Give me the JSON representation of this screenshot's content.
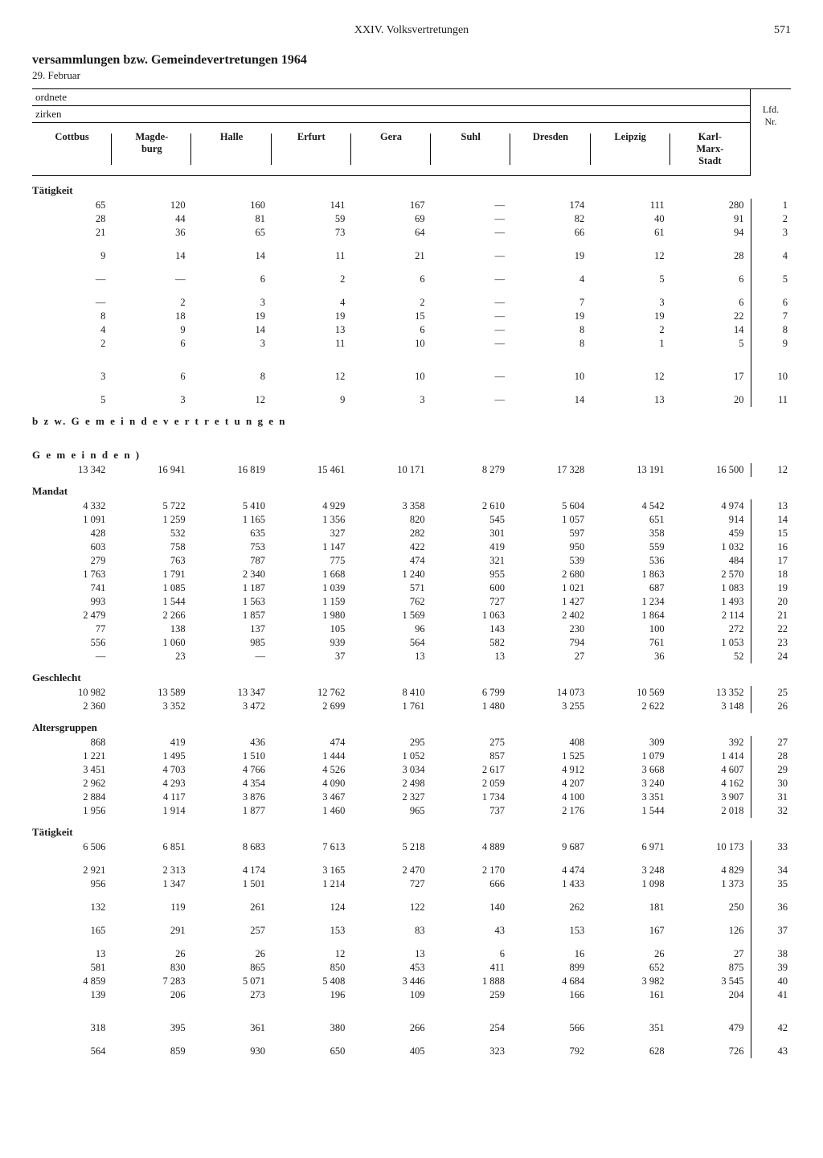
{
  "header": {
    "center": "XXIV. Volksvertretungen",
    "page": "571"
  },
  "title": "versammlungen bzw. Gemeindevertretungen 1964",
  "subdate": "29. Februar",
  "head": {
    "ordnete": "ordnete",
    "zirken": "zirken",
    "lfd": "Lfd.\nNr.",
    "cols": [
      "Cottbus",
      "Magde-\nburg",
      "Halle",
      "Erfurt",
      "Gera",
      "Suhl",
      "Dresden",
      "Leipzig",
      "Karl-\nMarx-\nStadt"
    ]
  },
  "sections": [
    {
      "label": "Tätigkeit",
      "rows": [
        [
          "65",
          "120",
          "160",
          "141",
          "167",
          "—",
          "174",
          "111",
          "280",
          "1"
        ],
        [
          "28",
          "44",
          "81",
          "59",
          "69",
          "—",
          "82",
          "40",
          "91",
          "2"
        ],
        [
          "21",
          "36",
          "65",
          "73",
          "64",
          "—",
          "66",
          "61",
          "94",
          "3"
        ],
        [
          "",
          "",
          "",
          "",
          "",
          "",
          "",
          "",
          "",
          ""
        ],
        [
          "9",
          "14",
          "14",
          "11",
          "21",
          "—",
          "19",
          "12",
          "28",
          "4"
        ],
        [
          "",
          "",
          "",
          "",
          "",
          "",
          "",
          "",
          "",
          ""
        ],
        [
          "—",
          "—",
          "6",
          "2",
          "6",
          "—",
          "4",
          "5",
          "6",
          "5"
        ],
        [
          "",
          "",
          "",
          "",
          "",
          "",
          "",
          "",
          "",
          ""
        ],
        [
          "—",
          "2",
          "3",
          "4",
          "2",
          "—",
          "7",
          "3",
          "6",
          "6"
        ],
        [
          "8",
          "18",
          "19",
          "19",
          "15",
          "—",
          "19",
          "19",
          "22",
          "7"
        ],
        [
          "4",
          "9",
          "14",
          "13",
          "6",
          "—",
          "8",
          "2",
          "14",
          "8"
        ],
        [
          "2",
          "6",
          "3",
          "11",
          "10",
          "—",
          "8",
          "1",
          "5",
          "9"
        ],
        [
          "",
          "",
          "",
          "",
          "",
          "",
          "",
          "",
          "",
          ""
        ],
        [
          "",
          "",
          "",
          "",
          "",
          "",
          "",
          "",
          "",
          ""
        ],
        [
          "3",
          "6",
          "8",
          "12",
          "10",
          "—",
          "10",
          "12",
          "17",
          "10"
        ],
        [
          "",
          "",
          "",
          "",
          "",
          "",
          "",
          "",
          "",
          ""
        ],
        [
          "5",
          "3",
          "12",
          "9",
          "3",
          "—",
          "14",
          "13",
          "20",
          "11"
        ]
      ],
      "ticks": true
    },
    {
      "label": "b z w.  G e m e i n d e v e r t r e t u n g e n",
      "spaced": true,
      "rows": []
    },
    {
      "label": "G e m e i n d e n )",
      "spaced": true,
      "rows": [
        [
          "13 342",
          "16 941",
          "16 819",
          "15 461",
          "10 171",
          "8 279",
          "17 328",
          "13 191",
          "16 500",
          "12"
        ]
      ],
      "ticks": true,
      "tallgap": true
    },
    {
      "label": "Mandat",
      "rows": [
        [
          "4 332",
          "5 722",
          "5 410",
          "4 929",
          "3 358",
          "2 610",
          "5 604",
          "4 542",
          "4 974",
          "13"
        ],
        [
          "1 091",
          "1 259",
          "1 165",
          "1 356",
          "820",
          "545",
          "1 057",
          "651",
          "914",
          "14"
        ],
        [
          "428",
          "532",
          "635",
          "327",
          "282",
          "301",
          "597",
          "358",
          "459",
          "15"
        ],
        [
          "603",
          "758",
          "753",
          "1 147",
          "422",
          "419",
          "950",
          "559",
          "1 032",
          "16"
        ],
        [
          "279",
          "763",
          "787",
          "775",
          "474",
          "321",
          "539",
          "536",
          "484",
          "17"
        ],
        [
          "1 763",
          "1 791",
          "2 340",
          "1 668",
          "1 240",
          "955",
          "2 680",
          "1 863",
          "2 570",
          "18"
        ],
        [
          "741",
          "1 085",
          "1 187",
          "1 039",
          "571",
          "600",
          "1 021",
          "687",
          "1 083",
          "19"
        ],
        [
          "993",
          "1 544",
          "1 563",
          "1 159",
          "762",
          "727",
          "1 427",
          "1 234",
          "1 493",
          "20"
        ],
        [
          "2 479",
          "2 266",
          "1 857",
          "1 980",
          "1 569",
          "1 063",
          "2 402",
          "1 864",
          "2 114",
          "21"
        ],
        [
          "77",
          "138",
          "137",
          "105",
          "96",
          "143",
          "230",
          "100",
          "272",
          "22"
        ],
        [
          "556",
          "1 060",
          "985",
          "939",
          "564",
          "582",
          "794",
          "761",
          "1 053",
          "23"
        ],
        [
          "—",
          "23",
          "—",
          "37",
          "13",
          "13",
          "27",
          "36",
          "52",
          "24"
        ]
      ],
      "ticks": true
    },
    {
      "label": "Geschlecht",
      "rows": [
        [
          "10 982",
          "13 589",
          "13 347",
          "12 762",
          "8 410",
          "6 799",
          "14 073",
          "10 569",
          "13 352",
          "25"
        ],
        [
          "2 360",
          "3 352",
          "3 472",
          "2 699",
          "1 761",
          "1 480",
          "3 255",
          "2 622",
          "3 148",
          "26"
        ]
      ],
      "ticks": true
    },
    {
      "label": "Altersgruppen",
      "rows": [
        [
          "868",
          "419",
          "436",
          "474",
          "295",
          "275",
          "408",
          "309",
          "392",
          "27"
        ],
        [
          "1 221",
          "1 495",
          "1 510",
          "1 444",
          "1 052",
          "857",
          "1 525",
          "1 079",
          "1 414",
          "28"
        ],
        [
          "3 451",
          "4 703",
          "4 766",
          "4 526",
          "3 034",
          "2 617",
          "4 912",
          "3 668",
          "4 607",
          "29"
        ],
        [
          "2 962",
          "4 293",
          "4 354",
          "4 090",
          "2 498",
          "2 059",
          "4 207",
          "3 240",
          "4 162",
          "30"
        ],
        [
          "2 884",
          "4 117",
          "3 876",
          "3 467",
          "2 327",
          "1 734",
          "4 100",
          "3 351",
          "3 907",
          "31"
        ],
        [
          "1 956",
          "1 914",
          "1 877",
          "1 460",
          "965",
          "737",
          "2 176",
          "1 544",
          "2 018",
          "32"
        ]
      ],
      "ticks": true
    },
    {
      "label": "Tätigkeit",
      "rows": [
        [
          "6 506",
          "6 851",
          "8 683",
          "7 613",
          "5 218",
          "4 889",
          "9 687",
          "6 971",
          "10 173",
          "33"
        ],
        [
          "",
          "",
          "",
          "",
          "",
          "",
          "",
          "",
          "",
          ""
        ],
        [
          "2 921",
          "2 313",
          "4 174",
          "3 165",
          "2 470",
          "2 170",
          "4 474",
          "3 248",
          "4 829",
          "34"
        ],
        [
          "956",
          "1 347",
          "1 501",
          "1 214",
          "727",
          "666",
          "1 433",
          "1 098",
          "1 373",
          "35"
        ],
        [
          "",
          "",
          "",
          "",
          "",
          "",
          "",
          "",
          "",
          ""
        ],
        [
          "132",
          "119",
          "261",
          "124",
          "122",
          "140",
          "262",
          "181",
          "250",
          "36"
        ],
        [
          "",
          "",
          "",
          "",
          "",
          "",
          "",
          "",
          "",
          ""
        ],
        [
          "165",
          "291",
          "257",
          "153",
          "83",
          "43",
          "153",
          "167",
          "126",
          "37"
        ],
        [
          "",
          "",
          "",
          "",
          "",
          "",
          "",
          "",
          "",
          ""
        ],
        [
          "13",
          "26",
          "26",
          "12",
          "13",
          "6",
          "16",
          "26",
          "27",
          "38"
        ],
        [
          "581",
          "830",
          "865",
          "850",
          "453",
          "411",
          "899",
          "652",
          "875",
          "39"
        ],
        [
          "4 859",
          "7 283",
          "5 071",
          "5 408",
          "3 446",
          "1 888",
          "4 684",
          "3 982",
          "3 545",
          "40"
        ],
        [
          "139",
          "206",
          "273",
          "196",
          "109",
          "259",
          "166",
          "161",
          "204",
          "41"
        ],
        [
          "",
          "",
          "",
          "",
          "",
          "",
          "",
          "",
          "",
          ""
        ],
        [
          "",
          "",
          "",
          "",
          "",
          "",
          "",
          "",
          "",
          ""
        ],
        [
          "318",
          "395",
          "361",
          "380",
          "266",
          "254",
          "566",
          "351",
          "479",
          "42"
        ],
        [
          "",
          "",
          "",
          "",
          "",
          "",
          "",
          "",
          "",
          ""
        ],
        [
          "564",
          "859",
          "930",
          "650",
          "405",
          "323",
          "792",
          "628",
          "726",
          "43"
        ]
      ],
      "ticks": true
    }
  ]
}
